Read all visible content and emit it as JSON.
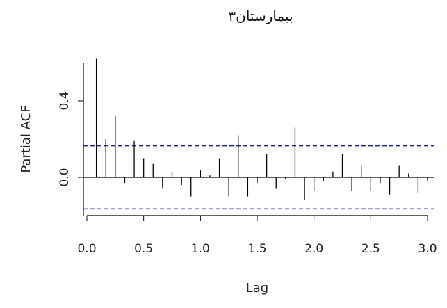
{
  "chart_data": {
    "type": "bar",
    "title": "بیمارستان۳",
    "xlabel": "Lag",
    "ylabel": "Partial ACF",
    "xlim": [
      -0.05,
      3.07
    ],
    "ylim": [
      -0.19,
      0.63
    ],
    "xticks": [
      "0.0",
      "0.5",
      "1.0",
      "1.5",
      "2.0",
      "2.5",
      "3.0"
    ],
    "yticks": [
      "0.0",
      "0.4"
    ],
    "confidence_bounds": [
      0.165,
      -0.165
    ],
    "confidence_color": "#1f1f9a",
    "bar_color": "#000000",
    "lags": [
      0.0833,
      0.1667,
      0.25,
      0.3333,
      0.4167,
      0.5,
      0.5833,
      0.6667,
      0.75,
      0.8333,
      0.9167,
      1.0,
      1.0833,
      1.1667,
      1.25,
      1.3333,
      1.4167,
      1.5,
      1.5833,
      1.6667,
      1.75,
      1.8333,
      1.9167,
      2.0,
      2.0833,
      2.1667,
      2.25,
      2.3333,
      2.4167,
      2.5,
      2.5833,
      2.6667,
      2.75,
      2.8333,
      2.9167,
      3.0
    ],
    "values": [
      0.62,
      0.2,
      0.32,
      -0.03,
      0.19,
      0.1,
      0.07,
      -0.06,
      0.03,
      -0.04,
      -0.1,
      0.04,
      0.01,
      0.1,
      -0.1,
      0.22,
      -0.1,
      -0.03,
      0.12,
      -0.06,
      -0.01,
      0.26,
      -0.12,
      -0.07,
      -0.02,
      0.03,
      0.12,
      -0.07,
      0.06,
      -0.07,
      -0.03,
      -0.09,
      0.06,
      0.02,
      -0.08,
      -0.02
    ]
  }
}
